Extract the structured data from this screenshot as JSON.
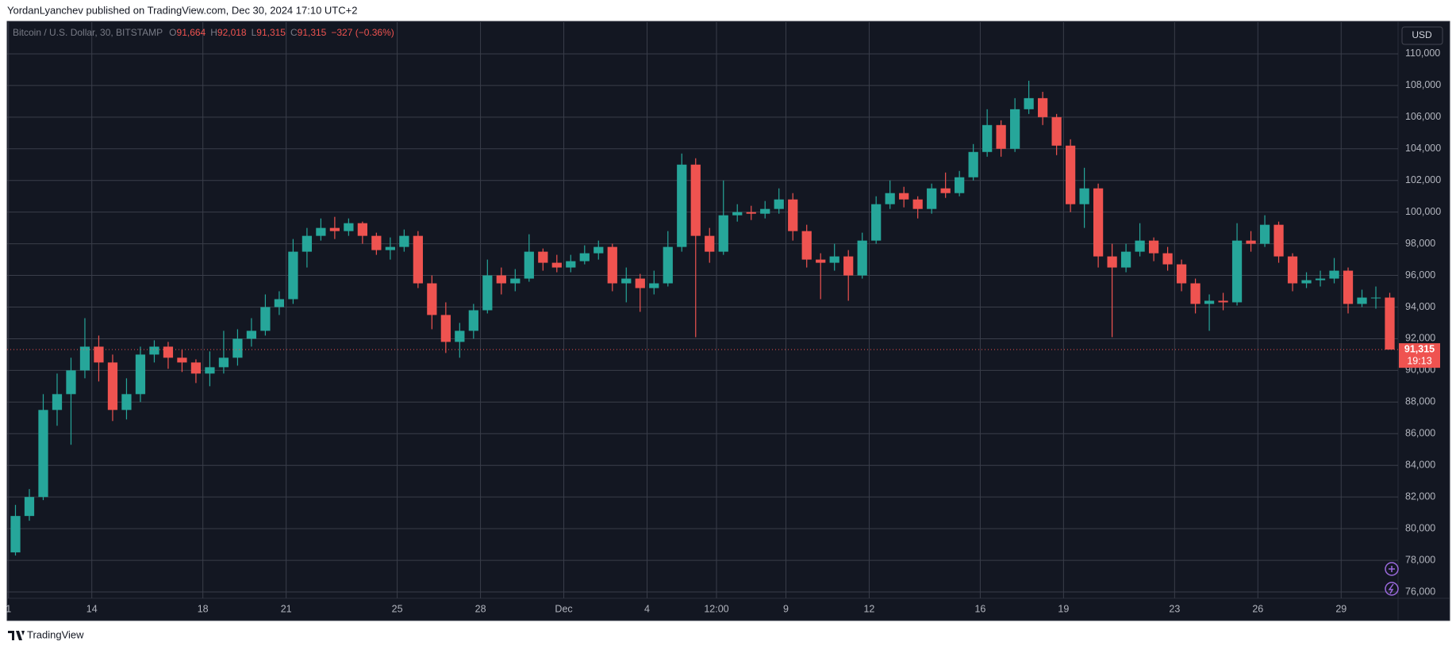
{
  "caption": "YordanLyanchev published on TradingView.com, Dec 30, 2024 17:10 UTC+2",
  "footer": "TradingView",
  "chart_data": {
    "type": "candlestick",
    "symbol": "Bitcoin / U.S. Dollar, 30, BITSTAMP",
    "readout": [
      "O",
      "91,664",
      "H",
      "92,018",
      "L",
      "91,315",
      "C",
      "91,315",
      "−327 (−0.36%)"
    ],
    "currency": "USD",
    "up_color": "#26a69a",
    "down_color": "#ef5350",
    "grid": true,
    "open": [
      78500,
      80800,
      82000,
      87500,
      88500,
      90000,
      91500,
      90500,
      87500,
      88500,
      91000,
      91500,
      90800,
      90500,
      89800,
      90200,
      90800,
      92000,
      92500,
      94000,
      94500,
      97500,
      98500,
      99000,
      98800,
      99300,
      98500,
      97600,
      97800,
      98500,
      95500,
      93500,
      91800,
      92500,
      93800,
      96000,
      95500,
      95800,
      97500,
      96800,
      96500,
      96900,
      97400,
      97800,
      95500,
      95800,
      95200,
      95500,
      97800,
      103000,
      98500,
      97500,
      99800,
      100000,
      99900,
      100200,
      100800,
      98800,
      97000,
      96800,
      97200,
      96000,
      98200,
      100500,
      101200,
      100800,
      100200,
      101500,
      101200,
      102200,
      103800,
      105500,
      104000,
      106500,
      107200,
      106000,
      104200,
      100500,
      101500,
      97200,
      96500,
      97500,
      98200,
      97400,
      96700,
      95500,
      94200,
      94400,
      94300,
      98200,
      98000,
      99200,
      97200,
      95500,
      95700,
      95800,
      96300,
      94200,
      94600,
      94600
    ],
    "high": [
      81500,
      82500,
      88500,
      89800,
      90800,
      93300,
      92200,
      91000,
      89500,
      91500,
      91900,
      91800,
      91300,
      90700,
      91200,
      92500,
      92600,
      93300,
      94800,
      95000,
      98300,
      99000,
      99600,
      99700,
      99600,
      99400,
      98700,
      98400,
      98900,
      98800,
      96000,
      94300,
      93000,
      94200,
      97000,
      96500,
      96400,
      98600,
      97700,
      97300,
      97300,
      97900,
      98200,
      98000,
      96500,
      96100,
      96300,
      98800,
      103700,
      103400,
      99000,
      102000,
      100500,
      100400,
      100700,
      101500,
      101200,
      99200,
      97400,
      98000,
      97600,
      98700,
      101000,
      102000,
      101600,
      101000,
      101800,
      102500,
      102600,
      104300,
      106500,
      105800,
      107200,
      108300,
      107600,
      106200,
      104600,
      102800,
      101800,
      98000,
      98000,
      99300,
      98400,
      97800,
      97000,
      95800,
      94800,
      94900,
      99300,
      98800,
      99800,
      99400,
      97400,
      96200,
      96300,
      97100,
      96500,
      95100,
      95300,
      94900
    ],
    "low": [
      78300,
      80500,
      81800,
      86500,
      85300,
      89500,
      89300,
      86800,
      86900,
      88000,
      90500,
      90100,
      89900,
      89200,
      89000,
      89800,
      90300,
      91500,
      92200,
      93500,
      94200,
      96500,
      98200,
      98300,
      98500,
      98000,
      97300,
      97000,
      97500,
      95200,
      92600,
      91100,
      90800,
      92000,
      93600,
      94800,
      95000,
      95600,
      96300,
      96200,
      96200,
      96700,
      97000,
      95000,
      94300,
      93700,
      94800,
      95300,
      97500,
      92100,
      96800,
      97300,
      99400,
      99500,
      99600,
      99900,
      98200,
      96500,
      94500,
      96300,
      94400,
      95800,
      98000,
      100200,
      100300,
      99600,
      99900,
      100900,
      101000,
      102000,
      103500,
      103500,
      103800,
      106200,
      105500,
      103600,
      100000,
      99000,
      96500,
      92100,
      96200,
      97200,
      96900,
      96300,
      95000,
      93600,
      92500,
      93800,
      94100,
      97500,
      97800,
      96800,
      95000,
      95200,
      95300,
      95500,
      93600,
      94000,
      93900,
      91315
    ],
    "close": [
      80800,
      82000,
      87500,
      88500,
      90000,
      91500,
      90500,
      87500,
      88500,
      91000,
      91500,
      90800,
      90500,
      89800,
      90200,
      90800,
      92000,
      92500,
      94000,
      94500,
      97500,
      98500,
      99000,
      98800,
      99300,
      98500,
      97600,
      97800,
      98500,
      95500,
      93500,
      91800,
      92500,
      93800,
      96000,
      95500,
      95800,
      97500,
      96800,
      96500,
      96900,
      97400,
      97800,
      95500,
      95800,
      95200,
      95500,
      97800,
      103000,
      98500,
      97500,
      99800,
      100000,
      99900,
      100200,
      100800,
      98800,
      97000,
      96800,
      97200,
      96000,
      98200,
      100500,
      101200,
      100800,
      100200,
      101500,
      101200,
      102200,
      103800,
      105500,
      104000,
      106500,
      107200,
      106000,
      104200,
      100500,
      101500,
      97200,
      96500,
      97500,
      98200,
      97400,
      96700,
      95500,
      94200,
      94400,
      94300,
      98200,
      98000,
      99200,
      97200,
      95500,
      95700,
      95800,
      96300,
      94200,
      94600,
      94600,
      91315
    ],
    "xlim": [
      -0.1,
      100.1
    ],
    "xticks": [
      {
        "value": 0,
        "label": "1"
      },
      {
        "value": 6,
        "label": "14"
      },
      {
        "value": 14,
        "label": "18"
      },
      {
        "value": 20,
        "label": "21"
      },
      {
        "value": 28,
        "label": "25"
      },
      {
        "value": 34,
        "label": "28"
      },
      {
        "value": 40,
        "label": "Dec"
      },
      {
        "value": 46,
        "label": "4"
      },
      {
        "value": 51,
        "label": "12:00"
      },
      {
        "value": 56,
        "label": "9"
      },
      {
        "value": 62,
        "label": "12"
      },
      {
        "value": 70,
        "label": "16"
      },
      {
        "value": 76,
        "label": "19"
      },
      {
        "value": 84,
        "label": "23"
      },
      {
        "value": 90,
        "label": "26"
      },
      {
        "value": 96,
        "label": "29"
      }
    ],
    "ylim": [
      75600,
      112000
    ],
    "yticks": [
      {
        "value": 76000,
        "label": "76,000"
      },
      {
        "value": 78000,
        "label": "78,000"
      },
      {
        "value": 80000,
        "label": "80,000"
      },
      {
        "value": 82000,
        "label": "82,000"
      },
      {
        "value": 84000,
        "label": "84,000"
      },
      {
        "value": 86000,
        "label": "86,000"
      },
      {
        "value": 88000,
        "label": "88,000"
      },
      {
        "value": 90000,
        "label": "90,000"
      },
      {
        "value": 92000,
        "label": "92,000"
      },
      {
        "value": 94000,
        "label": "94,000"
      },
      {
        "value": 96000,
        "label": "96,000"
      },
      {
        "value": 98000,
        "label": "98,000"
      },
      {
        "value": 100000,
        "label": "100,000"
      },
      {
        "value": 102000,
        "label": "102,000"
      },
      {
        "value": 104000,
        "label": "104,000"
      },
      {
        "value": 106000,
        "label": "106,000"
      },
      {
        "value": 108000,
        "label": "108,000"
      },
      {
        "value": 110000,
        "label": "110,000"
      }
    ],
    "last_price": {
      "value": 91315,
      "label": "91,315"
    },
    "countdown": "19:13"
  }
}
